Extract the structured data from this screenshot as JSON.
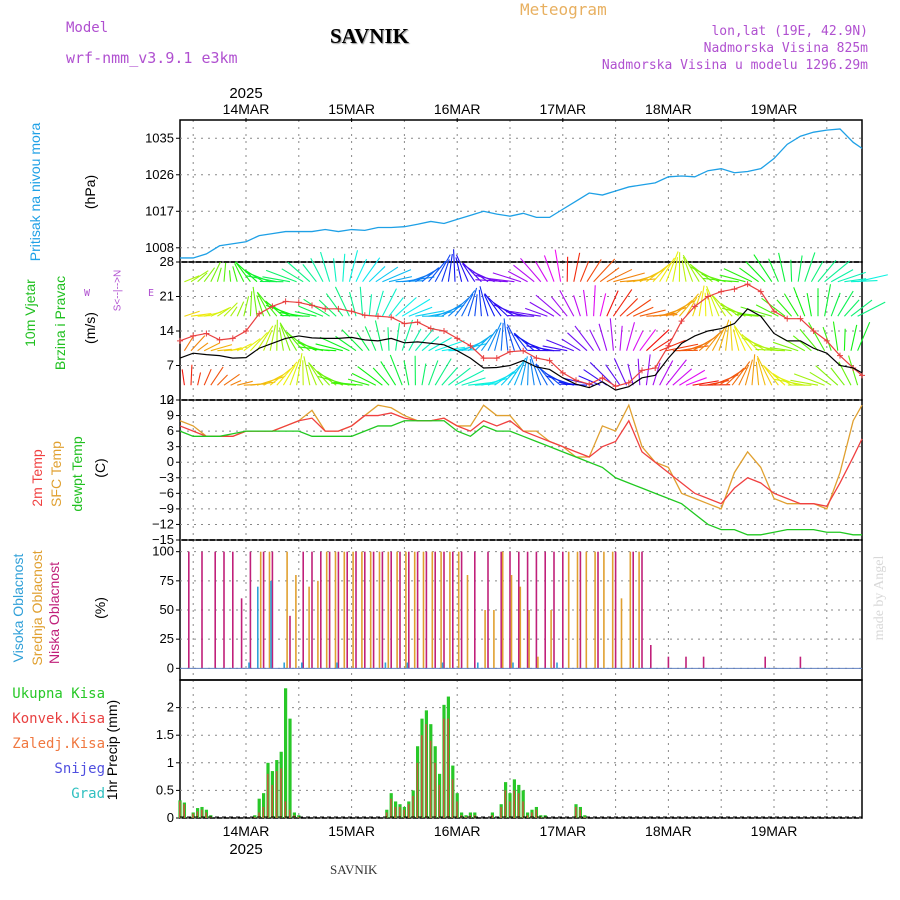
{
  "header": {
    "model_label": "Model",
    "model_name": "wrf-nmm_v3.9.1  e3km",
    "title": "SAVNIK",
    "chart_kind": "Meteogram",
    "lonlat": "lon,lat (19E, 42.9N)",
    "altitude": "Nadmorska Visina 825m",
    "model_altitude": "Nadmorska Visina u modelu 1296.29m",
    "footer_station": "SAVNIK",
    "credit": "made by Angel"
  },
  "colors": {
    "pressure": "#1ea0e6",
    "temp2m": "#f04040",
    "sfc_temp": "#e0a030",
    "dewpt": "#20c820",
    "cloud_high": "#30a0d8",
    "cloud_mid": "#e0a030",
    "cloud_low": "#c0207a",
    "precip_total": "#28c828",
    "precip_conv": "#e84040",
    "wind_label": "#20c020",
    "grid": "#888888"
  },
  "axes": {
    "year": "2025",
    "date_labels": [
      "14MAR",
      "15MAR",
      "16MAR",
      "17MAR",
      "18MAR",
      "19MAR"
    ],
    "x_range_hours": [
      -15,
      140
    ]
  },
  "chart_data": [
    {
      "type": "line",
      "title": "Pritisak na nivou mora",
      "ylabel": "(hPa)",
      "ylim": [
        1004.5,
        1039.5
      ],
      "yticks": [
        1008,
        1017,
        1026,
        1035
      ],
      "x": [
        -15,
        -12,
        -9,
        -6,
        -3,
        0,
        3,
        6,
        9,
        12,
        15,
        18,
        21,
        24,
        27,
        30,
        33,
        36,
        39,
        42,
        45,
        48,
        51,
        54,
        57,
        60,
        63,
        66,
        69,
        72,
        75,
        78,
        81,
        84,
        87,
        90,
        93,
        96,
        99,
        102,
        105,
        108,
        111,
        114,
        117,
        120,
        123,
        126,
        129,
        132,
        135,
        138,
        140
      ],
      "series": [
        {
          "name": "MSLP",
          "values": [
            1005.5,
            1005.5,
            1006.5,
            1008.5,
            1009,
            1009.5,
            1011,
            1011.5,
            1012,
            1012,
            1012,
            1012.5,
            1012,
            1012.5,
            1012.3,
            1013,
            1013,
            1013.2,
            1013.8,
            1014.5,
            1014,
            1015,
            1016,
            1017,
            1016.3,
            1015.8,
            1016.5,
            1015.5,
            1015.5,
            1017.5,
            1019.5,
            1021.5,
            1021,
            1022,
            1023,
            1023.5,
            1024,
            1025.5,
            1025.7,
            1025.5,
            1027,
            1027.5,
            1026.5,
            1026.8,
            1027.5,
            1030,
            1033.5,
            1035.5,
            1036.5,
            1037,
            1037.3,
            1034,
            1032.5
          ]
        }
      ]
    },
    {
      "type": "line",
      "title": "10m Vjetar Brzina i Pravac",
      "ylabel": "(m/s)",
      "ylim": [
        0,
        28
      ],
      "yticks": [
        0,
        7,
        14,
        21,
        28
      ],
      "compass": [
        "N",
        "W",
        "E",
        "S"
      ],
      "x": [
        -15,
        -12,
        -9,
        -6,
        -3,
        0,
        3,
        6,
        9,
        12,
        15,
        18,
        21,
        24,
        27,
        30,
        33,
        36,
        39,
        42,
        45,
        48,
        51,
        54,
        57,
        60,
        63,
        66,
        69,
        72,
        75,
        78,
        81,
        84,
        87,
        90,
        93,
        96,
        99,
        102,
        105,
        108,
        111,
        114,
        117,
        120,
        123,
        126,
        129,
        132,
        135,
        138,
        140
      ],
      "series": [
        {
          "name": "wind speed",
          "values": [
            8.5,
            9.5,
            9.2,
            9,
            8.5,
            8.6,
            10.5,
            11.5,
            12.5,
            13,
            12.6,
            12.5,
            12.5,
            12.7,
            12.2,
            12,
            12.5,
            11.6,
            11.8,
            11.5,
            11.2,
            10,
            8.5,
            6.5,
            6.6,
            7,
            8,
            6.7,
            6.2,
            4.5,
            3.2,
            2.5,
            3.7,
            2,
            2.7,
            4.5,
            5,
            8.5,
            11.5,
            13,
            14,
            14.5,
            15.5,
            18.5,
            17,
            13.5,
            12,
            12,
            10.5,
            9.5,
            7,
            6.5,
            5.5
          ]
        },
        {
          "name": "wind gust",
          "values": [
            12,
            13,
            13.5,
            12.2,
            12.5,
            14,
            17.5,
            19,
            20,
            19.8,
            19.2,
            18.5,
            18.5,
            18,
            17.2,
            17,
            16.8,
            15.5,
            15.8,
            14.5,
            14,
            12.5,
            11,
            8.5,
            8.5,
            9.8,
            10,
            8.5,
            8,
            5.5,
            4,
            3.2,
            4.5,
            2.8,
            3.5,
            6,
            6.5,
            11,
            16,
            19,
            21,
            22,
            22.5,
            23.5,
            22,
            18,
            16.5,
            16.5,
            14,
            12,
            9,
            6.5,
            5
          ]
        }
      ]
    },
    {
      "type": "line",
      "title": "2m Temp / SFC Temp / dewpt Temp",
      "ylabel": "(C)",
      "ylim": [
        -15,
        12
      ],
      "yticks": [
        -15,
        -12,
        -9,
        -6,
        -3,
        0,
        3,
        6,
        9,
        12
      ],
      "x": [
        -15,
        -12,
        -9,
        -6,
        -3,
        0,
        3,
        6,
        9,
        12,
        15,
        18,
        21,
        24,
        27,
        30,
        33,
        36,
        39,
        42,
        45,
        48,
        51,
        54,
        57,
        60,
        63,
        66,
        69,
        72,
        75,
        78,
        81,
        84,
        87,
        90,
        93,
        96,
        99,
        102,
        105,
        108,
        111,
        114,
        117,
        120,
        123,
        126,
        129,
        132,
        135,
        138,
        140
      ],
      "series": [
        {
          "name": "2m Temp",
          "values": [
            7,
            6,
            5,
            5,
            5,
            6,
            6,
            6,
            7,
            8,
            8.5,
            6,
            6,
            7,
            9,
            9,
            9.5,
            8.5,
            8,
            8,
            8.5,
            7,
            6,
            8,
            7,
            8,
            6,
            5,
            4,
            3,
            2,
            1,
            3,
            4,
            8,
            2,
            0,
            -2,
            -4,
            -6,
            -7,
            -8,
            -5,
            -3,
            -4,
            -6,
            -7,
            -8,
            -8,
            -8.5,
            -4,
            1,
            4.5
          ]
        },
        {
          "name": "SFC Temp",
          "values": [
            8,
            7,
            5,
            5,
            5,
            6,
            6,
            6,
            7,
            8,
            10,
            6,
            6,
            7,
            9,
            11,
            10.5,
            9,
            8,
            8,
            8.5,
            7,
            7,
            11,
            9,
            9,
            6,
            6,
            4,
            3,
            1,
            1,
            7,
            6,
            11,
            3,
            0,
            -1,
            -6,
            -7,
            -8,
            -9,
            -2,
            2,
            -1,
            -7,
            -8,
            -8,
            -8,
            -9,
            -2,
            8,
            11
          ]
        },
        {
          "name": "dewpt Temp",
          "values": [
            6,
            5,
            5,
            5,
            5.5,
            6,
            6,
            6,
            6,
            6,
            5,
            5,
            5,
            5,
            6,
            7,
            7,
            8,
            8,
            8,
            8,
            6,
            5,
            7,
            6,
            6,
            5,
            4,
            3,
            2,
            1,
            0,
            -1,
            -3,
            -4,
            -5,
            -6,
            -7,
            -8,
            -10,
            -12,
            -13,
            -13,
            -14,
            -14,
            -13.5,
            -13,
            -13,
            -13,
            -13.5,
            -13.5,
            -14,
            -14
          ]
        }
      ]
    },
    {
      "type": "bar",
      "title": "Visoka / Srednja / Niska Oblacnost",
      "ylabel": "(%)",
      "ylim": [
        0,
        100
      ],
      "yticks": [
        0,
        25,
        50,
        75,
        100
      ],
      "series": [
        {
          "name": "Niska Oblacnost",
          "x": [
            -13,
            -10,
            -7,
            -5,
            -3,
            -1,
            1,
            4,
            6,
            10,
            13,
            15,
            17,
            19,
            21,
            23,
            25,
            27,
            29,
            31,
            33,
            35,
            37,
            39,
            41,
            43,
            45,
            47,
            49,
            52,
            55,
            58,
            60,
            62,
            64,
            66,
            68,
            70,
            72,
            76,
            80,
            84,
            88,
            90,
            92,
            96,
            100,
            104,
            118,
            126
          ],
          "values": [
            100,
            100,
            100,
            100,
            100,
            60,
            100,
            100,
            100,
            45,
            100,
            100,
            100,
            100,
            100,
            100,
            100,
            100,
            100,
            100,
            100,
            100,
            100,
            100,
            100,
            100,
            100,
            100,
            100,
            100,
            100,
            100,
            100,
            100,
            100,
            100,
            100,
            100,
            100,
            100,
            100,
            100,
            100,
            100,
            20,
            10,
            10,
            10,
            10,
            10
          ]
        },
        {
          "name": "Srednja Oblacnost",
          "x": [
            3,
            5,
            9,
            11,
            14,
            16,
            18,
            20,
            22,
            24,
            26,
            28,
            30,
            32,
            34,
            36,
            38,
            40,
            42,
            44,
            46,
            48,
            50,
            54,
            56,
            58,
            60,
            62,
            64,
            66,
            69,
            73,
            75,
            77,
            79,
            81,
            83,
            85,
            87,
            89
          ],
          "values": [
            100,
            100,
            100,
            80,
            70,
            75,
            100,
            100,
            100,
            100,
            100,
            100,
            100,
            100,
            100,
            100,
            100,
            100,
            100,
            100,
            100,
            100,
            80,
            50,
            50,
            100,
            80,
            70,
            50,
            10,
            50,
            100,
            100,
            100,
            100,
            100,
            100,
            60,
            100,
            100
          ]
        },
        {
          "name": "Visoka Oblacnost",
          "x": [
            0,
            2,
            5,
            8,
            12,
            20,
            31,
            36,
            44,
            52,
            60,
            70
          ],
          "values": [
            5,
            70,
            75,
            5,
            5,
            5,
            5,
            5,
            5,
            5,
            5,
            5
          ]
        }
      ]
    },
    {
      "type": "bar",
      "title": "1hr Precip",
      "ylabel": "(mm)",
      "ylim": [
        0,
        2.5
      ],
      "yticks": [
        0,
        0.5,
        1,
        1.5,
        2
      ],
      "legend": [
        "Ukupna Kisa",
        "Konvek.Kisa",
        "Zaledj.Kisa",
        "Snijeg",
        "Grad"
      ],
      "x": [
        -15,
        -14,
        -12,
        -11,
        -10,
        -9,
        -8,
        2,
        3,
        4,
        5,
        6,
        7,
        8,
        9,
        10,
        11,
        12,
        32,
        33,
        34,
        35,
        36,
        37,
        38,
        39,
        40,
        41,
        42,
        43,
        44,
        45,
        46,
        47,
        48,
        49,
        50,
        51,
        52,
        56,
        58,
        59,
        60,
        61,
        62,
        63,
        64,
        65,
        66,
        67,
        68,
        75,
        76,
        77
      ],
      "series": [
        {
          "name": "Ukupna Kisa",
          "values": [
            0.32,
            0.28,
            0.1,
            0.18,
            0.2,
            0.15,
            0.05,
            0.05,
            0.35,
            0.45,
            1,
            0.85,
            1.05,
            1.2,
            2.35,
            1.8,
            0.1,
            0.05,
            0.15,
            0.45,
            0.3,
            0.25,
            0.2,
            0.3,
            0.5,
            1.3,
            1.8,
            1.95,
            1.7,
            1.3,
            0.8,
            2.05,
            2.2,
            0.95,
            0.45,
            0.1,
            0.05,
            0.1,
            0.1,
            0.1,
            0.25,
            0.65,
            0.45,
            0.7,
            0.6,
            0.5,
            0.1,
            0.15,
            0.2,
            0.05,
            0.05,
            0.25,
            0.2,
            0.05
          ]
        },
        {
          "name": "Konvek.Kisa",
          "values": [
            0.3,
            0.25,
            0.08,
            0.12,
            0.15,
            0.1,
            0.03,
            0.02,
            0.1,
            0.2,
            0.8,
            0.6,
            0.85,
            0.9,
            0.3,
            0.15,
            0.05,
            0.02,
            0.1,
            0.35,
            0.2,
            0.2,
            0.15,
            0.25,
            0.4,
            1.0,
            1.5,
            1.7,
            1.4,
            1.0,
            0.6,
            1.8,
            1.8,
            0.7,
            0.3,
            0.05,
            0.02,
            0.05,
            0.05,
            0.05,
            0.2,
            0.5,
            0.3,
            0.5,
            0.45,
            0.3,
            0.05,
            0.1,
            0.15,
            0.02,
            0.02,
            0.2,
            0.15,
            0.02
          ]
        }
      ]
    }
  ]
}
